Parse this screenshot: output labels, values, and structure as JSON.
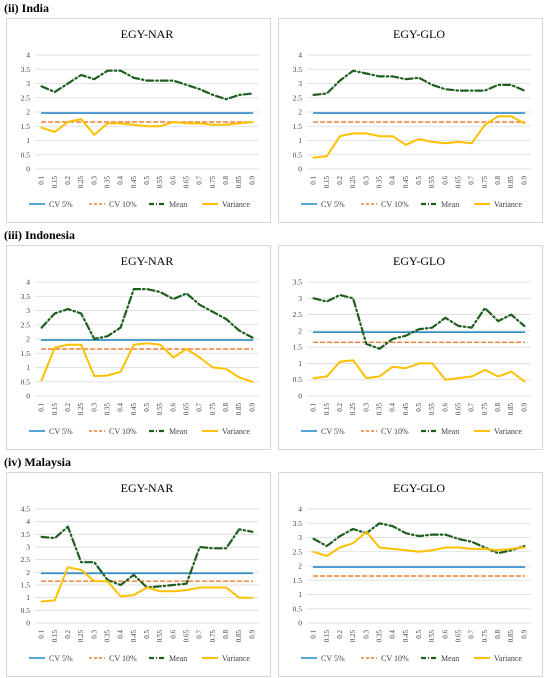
{
  "sections": [
    {
      "title": "(ii) India"
    },
    {
      "title": "(iii) Indonesia"
    },
    {
      "title": "(iv) Malaysia"
    }
  ],
  "colors": {
    "cv5": "#2e8bc9",
    "cv10": "#ed7d31",
    "mean": "#1e5e1e",
    "variance": "#ffc000"
  },
  "chart_data": [
    {
      "type": "line",
      "title": "EGY-NAR",
      "section": "(ii) India",
      "categories": [
        "0.1",
        "0.15",
        "0.2",
        "0.25",
        "0.3",
        "0.35",
        "0.4",
        "0.45",
        "0.5",
        "0.55",
        "0.6",
        "0.65",
        "0.7",
        "0.75",
        "0.8",
        "0.85",
        "0.9"
      ],
      "yticks": [
        "0",
        "0.5",
        "1",
        "1.5",
        "2",
        "2.5",
        "3",
        "3.5",
        "4"
      ],
      "ylim": [
        0,
        4
      ],
      "legend": "bottom",
      "series": [
        {
          "name": "CV 5%",
          "values": [
            1.96,
            1.96,
            1.96,
            1.96,
            1.96,
            1.96,
            1.96,
            1.96,
            1.96,
            1.96,
            1.96,
            1.96,
            1.96,
            1.96,
            1.96,
            1.96,
            1.96
          ]
        },
        {
          "name": "CV 10%",
          "values": [
            1.65,
            1.65,
            1.65,
            1.65,
            1.65,
            1.65,
            1.65,
            1.65,
            1.65,
            1.65,
            1.65,
            1.65,
            1.65,
            1.65,
            1.65,
            1.65,
            1.65
          ]
        },
        {
          "name": "Mean",
          "values": [
            2.9,
            2.7,
            3.0,
            3.3,
            3.15,
            3.45,
            3.45,
            3.2,
            3.1,
            3.1,
            3.1,
            2.95,
            2.8,
            2.6,
            2.45,
            2.6,
            2.65
          ]
        },
        {
          "name": "Variance",
          "values": [
            1.45,
            1.3,
            1.65,
            1.75,
            1.2,
            1.6,
            1.6,
            1.55,
            1.5,
            1.5,
            1.65,
            1.6,
            1.6,
            1.55,
            1.55,
            1.6,
            1.65
          ]
        }
      ]
    },
    {
      "type": "line",
      "title": "EGY-GLO",
      "section": "(ii) India",
      "categories": [
        "0.1",
        "0.15",
        "0.2",
        "0.25",
        "0.3",
        "0.35",
        "0.4",
        "0.45",
        "0.5",
        "0.55",
        "0.6",
        "0.65",
        "0.7",
        "0.75",
        "0.8",
        "0.85",
        "0.9"
      ],
      "yticks": [
        "0",
        "0.5",
        "1",
        "1.5",
        "2",
        "2.5",
        "3",
        "3.5",
        "4"
      ],
      "ylim": [
        0,
        4
      ],
      "legend": "bottom",
      "series": [
        {
          "name": "CV 5%",
          "values": [
            1.96,
            1.96,
            1.96,
            1.96,
            1.96,
            1.96,
            1.96,
            1.96,
            1.96,
            1.96,
            1.96,
            1.96,
            1.96,
            1.96,
            1.96,
            1.96,
            1.96
          ]
        },
        {
          "name": "CV 10%",
          "values": [
            1.65,
            1.65,
            1.65,
            1.65,
            1.65,
            1.65,
            1.65,
            1.65,
            1.65,
            1.65,
            1.65,
            1.65,
            1.65,
            1.65,
            1.65,
            1.65,
            1.65
          ]
        },
        {
          "name": "Mean",
          "values": [
            2.6,
            2.65,
            3.1,
            3.45,
            3.35,
            3.25,
            3.25,
            3.15,
            3.2,
            2.95,
            2.8,
            2.75,
            2.75,
            2.75,
            2.95,
            2.95,
            2.75
          ]
        },
        {
          "name": "Variance",
          "values": [
            0.4,
            0.45,
            1.15,
            1.25,
            1.25,
            1.15,
            1.15,
            0.85,
            1.05,
            0.95,
            0.9,
            0.95,
            0.9,
            1.55,
            1.85,
            1.85,
            1.6
          ]
        }
      ]
    },
    {
      "type": "line",
      "title": "EGY-NAR",
      "section": "(iii) Indonesia",
      "categories": [
        "0.1",
        "0.15",
        "0.2",
        "0.25",
        "0.3",
        "0.35",
        "0.4",
        "0.45",
        "0.5",
        "0.55",
        "0.6",
        "0.65",
        "0.7",
        "0.75",
        "0.8",
        "0.85",
        "0.9"
      ],
      "yticks": [
        "0",
        "0.5",
        "1",
        "1.5",
        "2",
        "2.5",
        "3",
        "3.5",
        "4"
      ],
      "ylim": [
        0,
        4
      ],
      "legend": "bottom",
      "series": [
        {
          "name": "CV 5%",
          "values": [
            1.96,
            1.96,
            1.96,
            1.96,
            1.96,
            1.96,
            1.96,
            1.96,
            1.96,
            1.96,
            1.96,
            1.96,
            1.96,
            1.96,
            1.96,
            1.96,
            1.96
          ]
        },
        {
          "name": "CV 10%",
          "values": [
            1.65,
            1.65,
            1.65,
            1.65,
            1.65,
            1.65,
            1.65,
            1.65,
            1.65,
            1.65,
            1.65,
            1.65,
            1.65,
            1.65,
            1.65,
            1.65,
            1.65
          ]
        },
        {
          "name": "Mean",
          "values": [
            2.4,
            2.9,
            3.05,
            2.9,
            2.0,
            2.1,
            2.4,
            3.75,
            3.75,
            3.65,
            3.4,
            3.6,
            3.2,
            2.95,
            2.7,
            2.3,
            2.05
          ]
        },
        {
          "name": "Variance",
          "values": [
            0.55,
            1.7,
            1.8,
            1.8,
            0.7,
            0.72,
            0.85,
            1.8,
            1.85,
            1.8,
            1.35,
            1.65,
            1.35,
            1.0,
            0.95,
            0.65,
            0.5
          ]
        }
      ]
    },
    {
      "type": "line",
      "title": "EGY-GLO",
      "section": "(iii) Indonesia",
      "categories": [
        "0.1",
        "0.15",
        "0.2",
        "0.25",
        "0.3",
        "0.35",
        "0.4",
        "0.45",
        "0.5",
        "0.55",
        "0.6",
        "0.65",
        "0.7",
        "0.75",
        "0.8",
        "0.85",
        "0.9"
      ],
      "yticks": [
        "0",
        "0.5",
        "1",
        "1.5",
        "2",
        "2.5",
        "3",
        "3.5"
      ],
      "ylim": [
        0,
        3.5
      ],
      "legend": "bottom",
      "series": [
        {
          "name": "CV 5%",
          "values": [
            1.96,
            1.96,
            1.96,
            1.96,
            1.96,
            1.96,
            1.96,
            1.96,
            1.96,
            1.96,
            1.96,
            1.96,
            1.96,
            1.96,
            1.96,
            1.96,
            1.96
          ]
        },
        {
          "name": "CV 10%",
          "values": [
            1.65,
            1.65,
            1.65,
            1.65,
            1.65,
            1.65,
            1.65,
            1.65,
            1.65,
            1.65,
            1.65,
            1.65,
            1.65,
            1.65,
            1.65,
            1.65,
            1.65
          ]
        },
        {
          "name": "Mean",
          "values": [
            3.0,
            2.9,
            3.1,
            3.0,
            1.6,
            1.45,
            1.75,
            1.85,
            2.05,
            2.1,
            2.4,
            2.15,
            2.1,
            2.7,
            2.3,
            2.5,
            2.15
          ]
        },
        {
          "name": "Variance",
          "values": [
            0.55,
            0.6,
            1.05,
            1.1,
            0.55,
            0.6,
            0.9,
            0.85,
            1.0,
            1.0,
            0.5,
            0.55,
            0.6,
            0.8,
            0.6,
            0.75,
            0.45
          ]
        }
      ]
    },
    {
      "type": "line",
      "title": "EGY-NAR",
      "section": "(iv) Malaysia",
      "categories": [
        "0.1",
        "0.15",
        "0.2",
        "0.25",
        "0.3",
        "0.35",
        "0.4",
        "0.45",
        "0.5",
        "0.55",
        "0.6",
        "0.65",
        "0.7",
        "0.75",
        "0.8",
        "0.85",
        "0.9"
      ],
      "yticks": [
        "0",
        "0.5",
        "1",
        "1.5",
        "2",
        "2.5",
        "3",
        "3.5",
        "4",
        "4.5"
      ],
      "ylim": [
        0,
        4.5
      ],
      "legend": "bottom",
      "series": [
        {
          "name": "CV 5%",
          "values": [
            1.96,
            1.96,
            1.96,
            1.96,
            1.96,
            1.96,
            1.96,
            1.96,
            1.96,
            1.96,
            1.96,
            1.96,
            1.96,
            1.96,
            1.96,
            1.96,
            1.96
          ]
        },
        {
          "name": "CV 10%",
          "values": [
            1.65,
            1.65,
            1.65,
            1.65,
            1.65,
            1.65,
            1.65,
            1.65,
            1.65,
            1.65,
            1.65,
            1.65,
            1.65,
            1.65,
            1.65,
            1.65,
            1.65
          ]
        },
        {
          "name": "Mean",
          "values": [
            3.4,
            3.35,
            3.8,
            2.4,
            2.4,
            1.7,
            1.5,
            1.9,
            1.4,
            1.45,
            1.5,
            1.55,
            3.0,
            2.95,
            2.95,
            3.7,
            3.6
          ]
        },
        {
          "name": "Variance",
          "values": [
            0.85,
            0.9,
            2.2,
            2.1,
            1.65,
            1.65,
            1.05,
            1.1,
            1.4,
            1.25,
            1.25,
            1.3,
            1.4,
            1.4,
            1.4,
            1.0,
            1.0
          ]
        }
      ]
    },
    {
      "type": "line",
      "title": "EGY-GLO",
      "section": "(iv) Malaysia",
      "categories": [
        "0.1",
        "0.15",
        "0.2",
        "0.25",
        "0.3",
        "0.35",
        "0.4",
        "0.45",
        "0.5",
        "0.55",
        "0.6",
        "0.65",
        "0.7",
        "0.75",
        "0.8",
        "0.85",
        "0.9"
      ],
      "yticks": [
        "0",
        "0.5",
        "1",
        "1.5",
        "2",
        "2.5",
        "3",
        "3.5",
        "4"
      ],
      "ylim": [
        0,
        4
      ],
      "legend": "bottom",
      "series": [
        {
          "name": "CV 5%",
          "values": [
            1.96,
            1.96,
            1.96,
            1.96,
            1.96,
            1.96,
            1.96,
            1.96,
            1.96,
            1.96,
            1.96,
            1.96,
            1.96,
            1.96,
            1.96,
            1.96,
            1.96
          ]
        },
        {
          "name": "CV 10%",
          "values": [
            1.65,
            1.65,
            1.65,
            1.65,
            1.65,
            1.65,
            1.65,
            1.65,
            1.65,
            1.65,
            1.65,
            1.65,
            1.65,
            1.65,
            1.65,
            1.65,
            1.65
          ]
        },
        {
          "name": "Mean",
          "values": [
            2.95,
            2.7,
            3.05,
            3.3,
            3.15,
            3.5,
            3.4,
            3.15,
            3.05,
            3.1,
            3.1,
            2.95,
            2.85,
            2.65,
            2.45,
            2.55,
            2.7
          ]
        },
        {
          "name": "Variance",
          "values": [
            2.5,
            2.35,
            2.65,
            2.8,
            3.2,
            2.65,
            2.6,
            2.55,
            2.5,
            2.55,
            2.65,
            2.65,
            2.6,
            2.6,
            2.55,
            2.6,
            2.65
          ]
        }
      ]
    }
  ]
}
